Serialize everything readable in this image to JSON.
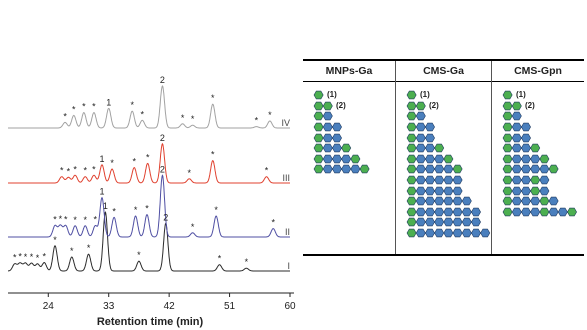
{
  "chart_data": {
    "type": "line",
    "xlabel": "Retention time (min)",
    "xlim": [
      18,
      60
    ],
    "x_ticks": [
      24,
      33,
      42,
      51,
      60
    ],
    "series": [
      {
        "name": "I",
        "baseline": 0,
        "peaks": [
          {
            "x": 19.0,
            "h": 0.5,
            "label": "*"
          },
          {
            "x": 19.8,
            "h": 0.55,
            "label": "*"
          },
          {
            "x": 20.6,
            "h": 0.55,
            "label": "*"
          },
          {
            "x": 21.5,
            "h": 0.55,
            "label": "*"
          },
          {
            "x": 22.4,
            "h": 0.5,
            "label": "*"
          },
          {
            "x": 23.4,
            "h": 0.6,
            "label": "*"
          },
          {
            "x": 25.0,
            "h": 1.8,
            "label": "*"
          },
          {
            "x": 27.5,
            "h": 1.0,
            "label": "*"
          },
          {
            "x": 30.0,
            "h": 1.2,
            "label": "*"
          },
          {
            "x": 32.5,
            "h": 4.2,
            "label": "1"
          },
          {
            "x": 37.5,
            "h": 0.7,
            "label": "*"
          },
          {
            "x": 41.5,
            "h": 3.4,
            "label": "2"
          },
          {
            "x": 49.5,
            "h": 0.45,
            "label": "*"
          },
          {
            "x": 53.5,
            "h": 0.2,
            "label": "*"
          }
        ]
      },
      {
        "name": "II",
        "baseline": 0,
        "peaks": [
          {
            "x": 25.0,
            "h": 0.8,
            "label": "*"
          },
          {
            "x": 25.8,
            "h": 0.8,
            "label": "*"
          },
          {
            "x": 26.6,
            "h": 0.8,
            "label": "*"
          },
          {
            "x": 28.0,
            "h": 0.8,
            "label": "*"
          },
          {
            "x": 29.5,
            "h": 0.8,
            "label": "*"
          },
          {
            "x": 31.0,
            "h": 0.8,
            "label": "*"
          },
          {
            "x": 32.0,
            "h": 2.8,
            "label": "1"
          },
          {
            "x": 33.8,
            "h": 1.4,
            "label": "*"
          },
          {
            "x": 37.0,
            "h": 1.5,
            "label": "*"
          },
          {
            "x": 38.7,
            "h": 1.6,
            "label": "*"
          },
          {
            "x": 41.0,
            "h": 4.4,
            "label": "2"
          },
          {
            "x": 45.5,
            "h": 0.3,
            "label": "*"
          },
          {
            "x": 49.0,
            "h": 1.5,
            "label": "*"
          },
          {
            "x": 57.5,
            "h": 0.6,
            "label": "*"
          }
        ]
      },
      {
        "name": "III",
        "baseline": 0,
        "peaks": [
          {
            "x": 26.0,
            "h": 0.45,
            "label": "*"
          },
          {
            "x": 27.0,
            "h": 0.4,
            "label": "*"
          },
          {
            "x": 28.0,
            "h": 0.55,
            "label": "*"
          },
          {
            "x": 29.5,
            "h": 0.45,
            "label": "*"
          },
          {
            "x": 30.8,
            "h": 0.55,
            "label": "*"
          },
          {
            "x": 32.0,
            "h": 1.3,
            "label": "1"
          },
          {
            "x": 33.5,
            "h": 1.0,
            "label": "*"
          },
          {
            "x": 36.8,
            "h": 1.1,
            "label": "*"
          },
          {
            "x": 38.8,
            "h": 1.4,
            "label": "*"
          },
          {
            "x": 41.0,
            "h": 2.8,
            "label": "2"
          },
          {
            "x": 45.0,
            "h": 0.3,
            "label": "*"
          },
          {
            "x": 48.5,
            "h": 1.6,
            "label": "*"
          },
          {
            "x": 56.5,
            "h": 0.45,
            "label": "*"
          }
        ]
      },
      {
        "name": "IV",
        "baseline": 0,
        "peaks": [
          {
            "x": 26.5,
            "h": 0.4,
            "label": "*"
          },
          {
            "x": 27.8,
            "h": 0.9,
            "label": "*"
          },
          {
            "x": 29.3,
            "h": 1.1,
            "label": "*"
          },
          {
            "x": 30.8,
            "h": 1.1,
            "label": "*"
          },
          {
            "x": 33.0,
            "h": 1.4,
            "label": "1"
          },
          {
            "x": 36.5,
            "h": 1.2,
            "label": "*"
          },
          {
            "x": 38.0,
            "h": 0.55,
            "label": "*"
          },
          {
            "x": 41.0,
            "h": 3.0,
            "label": "2"
          },
          {
            "x": 44.0,
            "h": 0.3,
            "label": "*"
          },
          {
            "x": 45.5,
            "h": 0.2,
            "label": "*"
          },
          {
            "x": 48.5,
            "h": 1.7,
            "label": "*"
          },
          {
            "x": 55.0,
            "h": 0.1,
            "label": "*"
          },
          {
            "x": 57.0,
            "h": 0.5,
            "label": "*"
          }
        ]
      }
    ],
    "colors": {
      "I": "#2b2b2b",
      "II": "#4f4fa3",
      "III": "#e0412f",
      "IV": "#a2a2a2"
    }
  },
  "table": {
    "columns": [
      {
        "header": "MNPs-Ga",
        "glycans": [
          [
            1
          ],
          [
            1,
            1
          ],
          [
            1,
            0
          ],
          [
            1,
            0,
            0
          ],
          [
            1,
            0,
            0
          ],
          [
            1,
            0,
            0,
            1
          ],
          [
            1,
            0,
            0,
            0,
            1
          ],
          [
            1,
            0,
            0,
            0,
            0,
            1
          ]
        ],
        "notes": [
          "(1)",
          "(2)"
        ]
      },
      {
        "header": "CMS-Ga",
        "glycans": [
          [
            1
          ],
          [
            1,
            1
          ],
          [
            1,
            0
          ],
          [
            1,
            0,
            0
          ],
          [
            1,
            0,
            0
          ],
          [
            1,
            0,
            0,
            1
          ],
          [
            1,
            0,
            0,
            0,
            1
          ],
          [
            1,
            0,
            0,
            0,
            0,
            1
          ],
          [
            1,
            0,
            0,
            0,
            0,
            0
          ],
          [
            1,
            0,
            0,
            0,
            0,
            0
          ],
          [
            1,
            0,
            0,
            0,
            0,
            0,
            0
          ],
          [
            1,
            0,
            0,
            0,
            0,
            0,
            0,
            0
          ],
          [
            1,
            0,
            0,
            0,
            0,
            0,
            0,
            0
          ],
          [
            1,
            0,
            0,
            0,
            0,
            0,
            0,
            0,
            0
          ]
        ],
        "notes": [
          "(1)",
          "(2)"
        ]
      },
      {
        "header": "CMS-Gpn",
        "glycans": [
          [
            1
          ],
          [
            1,
            1
          ],
          [
            1,
            0
          ],
          [
            1,
            0,
            0
          ],
          [
            1,
            0,
            0
          ],
          [
            1,
            0,
            0,
            1
          ],
          [
            1,
            0,
            0,
            0,
            1
          ],
          [
            1,
            0,
            0,
            0,
            0,
            1
          ],
          [
            1,
            0,
            0,
            1,
            0
          ],
          [
            1,
            0,
            0,
            1,
            0
          ],
          [
            1,
            0,
            0,
            0,
            1,
            0
          ],
          [
            1,
            0,
            0,
            0,
            1,
            0,
            0,
            1
          ]
        ],
        "notes": [
          "(1)",
          "(2)"
        ]
      }
    ],
    "colors": {
      "green": "#4caf50",
      "blue": "#4a7fbd",
      "outline": "#1f3a5f"
    }
  }
}
